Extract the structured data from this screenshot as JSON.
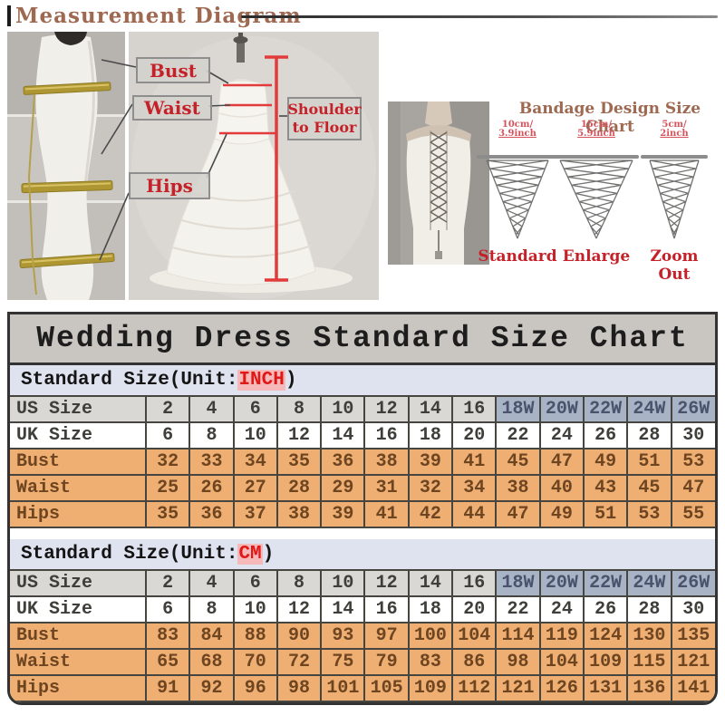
{
  "header": {
    "title": "Measurement Diagram"
  },
  "measurement_diagram": {
    "bust_label": "Bust",
    "waist_label": "Waist",
    "hips_label": "Hips",
    "shoulder_to_floor_line1": "Shoulder",
    "shoulder_to_floor_line2": "to Floor"
  },
  "bandage_chart": {
    "title": "Bandage Design Size Chart",
    "options": [
      {
        "measure_line1": "10cm/",
        "measure_line2": "3.9inch",
        "label": "Standard"
      },
      {
        "measure_line1": "15cm/",
        "measure_line2": "5.9inch",
        "label": "Enlarge"
      },
      {
        "measure_line1": "5cm/",
        "measure_line2": "2inch",
        "label": "Zoom Out"
      }
    ]
  },
  "size_chart": {
    "title": "Wedding Dress Standard Size Chart",
    "sections": [
      {
        "heading_prefix": "Standard Size(Unit:",
        "unit": "INCH",
        "heading_suffix": ")",
        "rows": [
          {
            "label": "US Size",
            "kind": "us",
            "values": [
              "2",
              "4",
              "6",
              "8",
              "10",
              "12",
              "14",
              "16",
              "18W",
              "20W",
              "22W",
              "24W",
              "26W"
            ]
          },
          {
            "label": "UK Size",
            "kind": "uk",
            "values": [
              "6",
              "8",
              "10",
              "12",
              "14",
              "16",
              "18",
              "20",
              "22",
              "24",
              "26",
              "28",
              "30"
            ]
          },
          {
            "label": "Bust",
            "kind": "meas",
            "values": [
              "32",
              "33",
              "34",
              "35",
              "36",
              "38",
              "39",
              "41",
              "45",
              "47",
              "49",
              "51",
              "53"
            ]
          },
          {
            "label": "Waist",
            "kind": "meas",
            "values": [
              "25",
              "26",
              "27",
              "28",
              "29",
              "31",
              "32",
              "34",
              "38",
              "40",
              "43",
              "45",
              "47"
            ]
          },
          {
            "label": "Hips",
            "kind": "meas",
            "values": [
              "35",
              "36",
              "37",
              "38",
              "39",
              "41",
              "42",
              "44",
              "47",
              "49",
              "51",
              "53",
              "55"
            ]
          }
        ]
      },
      {
        "heading_prefix": "Standard Size(Unit:",
        "unit": "CM",
        "heading_suffix": ")",
        "rows": [
          {
            "label": "US Size",
            "kind": "us",
            "values": [
              "2",
              "4",
              "6",
              "8",
              "10",
              "12",
              "14",
              "16",
              "18W",
              "20W",
              "22W",
              "24W",
              "26W"
            ]
          },
          {
            "label": "UK Size",
            "kind": "uk",
            "values": [
              "6",
              "8",
              "10",
              "12",
              "14",
              "16",
              "18",
              "20",
              "22",
              "24",
              "26",
              "28",
              "30"
            ]
          },
          {
            "label": "Bust",
            "kind": "meas",
            "values": [
              "83",
              "84",
              "88",
              "90",
              "93",
              "97",
              "100",
              "104",
              "114",
              "119",
              "124",
              "130",
              "135"
            ]
          },
          {
            "label": "Waist",
            "kind": "meas",
            "values": [
              "65",
              "68",
              "70",
              "72",
              "75",
              "79",
              "83",
              "86",
              "98",
              "104",
              "109",
              "115",
              "121"
            ]
          },
          {
            "label": "Hips",
            "kind": "meas",
            "values": [
              "91",
              "92",
              "96",
              "98",
              "101",
              "105",
              "109",
              "112",
              "121",
              "126",
              "131",
              "136",
              "141"
            ]
          }
        ]
      }
    ]
  },
  "colors": {
    "accent_red": "#c52129",
    "title_brown": "#9e6950",
    "measure_row_orange": "#efae72",
    "plus_size_blue": "#a9b3c6",
    "us_row_gray": "#d9d8d4",
    "section_header_blue": "#dfe3f0",
    "unit_highlight_pink": "#f6b9b9",
    "table_title_gray": "#c9c6c1"
  }
}
